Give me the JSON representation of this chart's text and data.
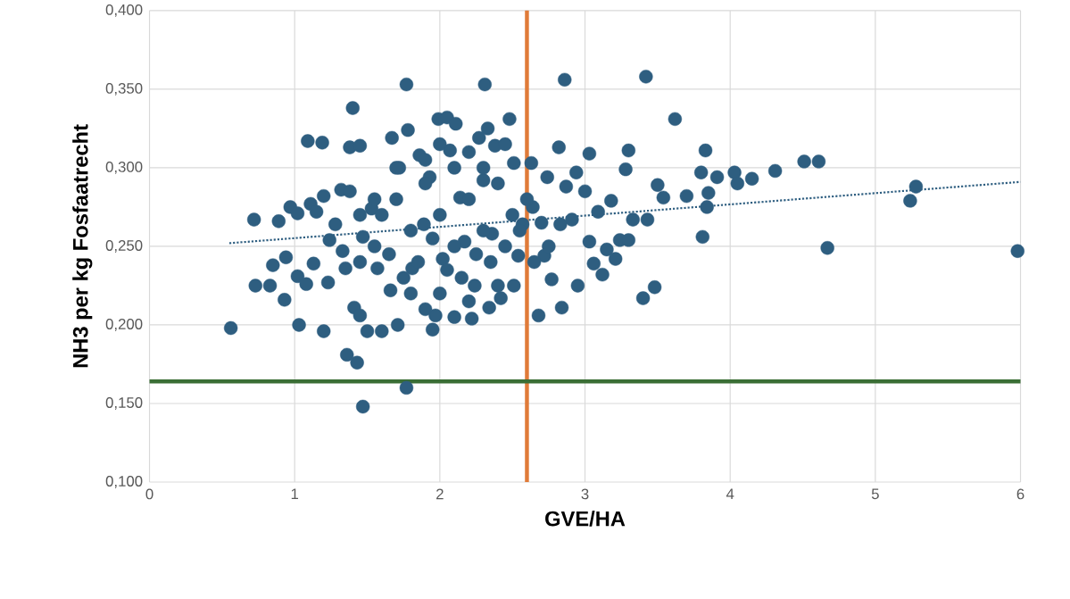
{
  "chart_data": {
    "type": "scatter",
    "xlabel": "GVE/HA",
    "ylabel": "NH3 per kg Fosfaatrecht",
    "xlim": [
      0,
      6
    ],
    "xticks": [
      0,
      1,
      2,
      3,
      4,
      5,
      6
    ],
    "ylim": [
      0.1,
      0.4
    ],
    "yticks": [
      {
        "value": 0.1,
        "label": "0,100"
      },
      {
        "value": 0.15,
        "label": "0,150"
      },
      {
        "value": 0.2,
        "label": "0,200"
      },
      {
        "value": 0.25,
        "label": "0,250"
      },
      {
        "value": 0.3,
        "label": "0,300"
      },
      {
        "value": 0.35,
        "label": "0,350"
      },
      {
        "value": 0.4,
        "label": "0,400"
      }
    ],
    "grid": true,
    "series": [
      {
        "type": "scatter",
        "marker": "circle",
        "color": "#2e5e80",
        "x": [
          0.56,
          0.72,
          0.73,
          0.83,
          0.85,
          0.89,
          0.93,
          0.94,
          0.97,
          1.02,
          1.02,
          1.03,
          1.08,
          1.09,
          1.11,
          1.13,
          1.15,
          1.19,
          1.2,
          1.2,
          1.23,
          1.24,
          1.28,
          1.32,
          1.33,
          1.35,
          1.36,
          1.38,
          1.38,
          1.4,
          1.41,
          1.43,
          1.45,
          1.45,
          1.47,
          1.5,
          1.47,
          1.53,
          1.57,
          1.6,
          1.66,
          1.67,
          1.72,
          1.71,
          1.77,
          1.77,
          1.78,
          1.81,
          1.86,
          1.89,
          1.93,
          1.95,
          1.97,
          1.99,
          2.02,
          2.05,
          2.07,
          2.11,
          2.14,
          2.17,
          2.22,
          2.24,
          2.27,
          2.3,
          2.31,
          2.33,
          2.34,
          2.36,
          2.38,
          2.42,
          2.45,
          2.48,
          2.51,
          2.51,
          2.54,
          2.57,
          2.63,
          2.64,
          2.68,
          2.72,
          2.74,
          2.77,
          2.82,
          2.83,
          2.84,
          2.86,
          2.87,
          2.91,
          2.94,
          2.95,
          3.0,
          3.03,
          3.03,
          3.06,
          3.09,
          3.12,
          3.15,
          3.18,
          3.21,
          3.24,
          3.28,
          3.3,
          3.3,
          3.33,
          3.4,
          3.42,
          3.43,
          3.48,
          3.5,
          3.54,
          3.62,
          3.7,
          3.8,
          3.81,
          3.83,
          3.85,
          3.84,
          3.91,
          4.03,
          4.05,
          4.15,
          4.31,
          4.51,
          4.61,
          4.67,
          5.24,
          5.28,
          5.98,
          1.6,
          1.7,
          1.8,
          1.9,
          2.0,
          2.1,
          2.2,
          2.3,
          2.4,
          2.5,
          1.65,
          1.75,
          1.85,
          1.95,
          2.05,
          2.15,
          2.25,
          2.35,
          2.45,
          2.55,
          1.7,
          1.9,
          2.1,
          2.3,
          2.0,
          2.2,
          1.55,
          1.55,
          1.45,
          1.45,
          2.6,
          2.7,
          2.75,
          2.65,
          1.8,
          2.0,
          2.2,
          2.4,
          1.9,
          2.1
        ],
        "values": [
          0.198,
          0.267,
          0.225,
          0.225,
          0.238,
          0.266,
          0.216,
          0.243,
          0.275,
          0.271,
          0.231,
          0.2,
          0.226,
          0.317,
          0.277,
          0.239,
          0.272,
          0.316,
          0.282,
          0.196,
          0.227,
          0.254,
          0.264,
          0.286,
          0.247,
          0.236,
          0.181,
          0.285,
          0.313,
          0.338,
          0.211,
          0.176,
          0.314,
          0.206,
          0.256,
          0.196,
          0.148,
          0.274,
          0.236,
          0.196,
          0.222,
          0.319,
          0.3,
          0.2,
          0.353,
          0.16,
          0.324,
          0.236,
          0.308,
          0.264,
          0.294,
          0.197,
          0.206,
          0.331,
          0.242,
          0.332,
          0.311,
          0.328,
          0.281,
          0.253,
          0.204,
          0.225,
          0.319,
          0.292,
          0.353,
          0.325,
          0.211,
          0.258,
          0.314,
          0.217,
          0.315,
          0.331,
          0.303,
          0.225,
          0.244,
          0.264,
          0.303,
          0.275,
          0.206,
          0.244,
          0.294,
          0.229,
          0.313,
          0.264,
          0.211,
          0.356,
          0.288,
          0.267,
          0.297,
          0.225,
          0.285,
          0.309,
          0.253,
          0.239,
          0.272,
          0.232,
          0.248,
          0.279,
          0.242,
          0.254,
          0.299,
          0.311,
          0.254,
          0.267,
          0.217,
          0.358,
          0.267,
          0.224,
          0.289,
          0.281,
          0.331,
          0.282,
          0.297,
          0.256,
          0.311,
          0.284,
          0.275,
          0.294,
          0.297,
          0.29,
          0.293,
          0.298,
          0.304,
          0.304,
          0.249,
          0.279,
          0.288,
          0.247,
          0.27,
          0.28,
          0.26,
          0.29,
          0.27,
          0.25,
          0.28,
          0.26,
          0.29,
          0.27,
          0.245,
          0.23,
          0.24,
          0.255,
          0.235,
          0.23,
          0.245,
          0.24,
          0.25,
          0.26,
          0.3,
          0.305,
          0.3,
          0.3,
          0.315,
          0.31,
          0.25,
          0.28,
          0.27,
          0.24,
          0.28,
          0.265,
          0.25,
          0.24,
          0.22,
          0.22,
          0.215,
          0.225,
          0.21,
          0.205
        ]
      },
      {
        "type": "line",
        "color": "#2e5e80",
        "line_style": "dotted",
        "marker": "none",
        "x": [
          0.55,
          6
        ],
        "values": [
          0.252,
          0.291
        ]
      }
    ],
    "ref_lines": [
      {
        "axis": "x",
        "value": 2.6,
        "color": "#e07b39"
      },
      {
        "axis": "y",
        "value": 0.164,
        "color": "#3a6e35"
      }
    ]
  }
}
